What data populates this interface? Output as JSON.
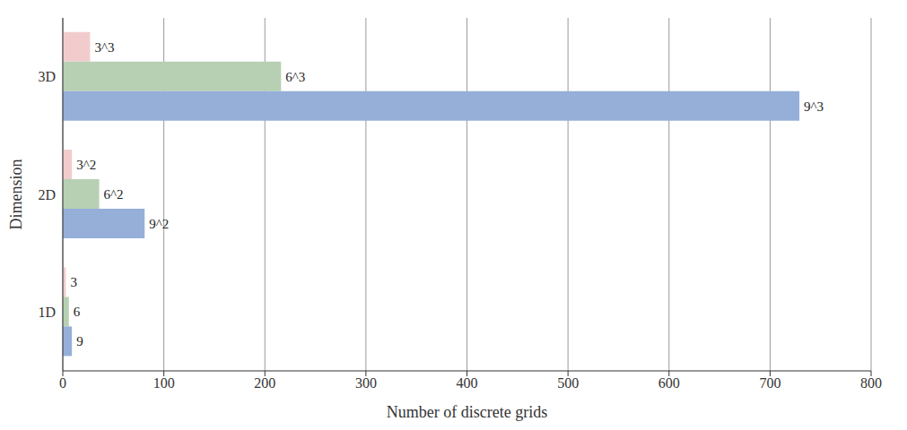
{
  "chart_data": {
    "type": "bar",
    "orientation": "horizontal",
    "x_label": "Number of discrete grids",
    "y_label": "Dimension",
    "categories": [
      "1D",
      "2D",
      "3D"
    ],
    "series": [
      {
        "color": "#f2cccc",
        "values": [
          3,
          9,
          27
        ],
        "value_labels": [
          "3",
          "3^2",
          "3^3"
        ]
      },
      {
        "color": "#b7d0b3",
        "values": [
          6,
          36,
          216
        ],
        "value_labels": [
          "6",
          "6^2",
          "6^3"
        ]
      },
      {
        "color": "#96afd9",
        "values": [
          9,
          81,
          729
        ],
        "value_labels": [
          "9",
          "9^2",
          "9^3"
        ]
      }
    ],
    "xlim": [
      0,
      800
    ],
    "xticks": [
      0,
      100,
      200,
      300,
      400,
      500,
      600,
      700,
      800
    ],
    "grid": true,
    "data_labels": true
  }
}
